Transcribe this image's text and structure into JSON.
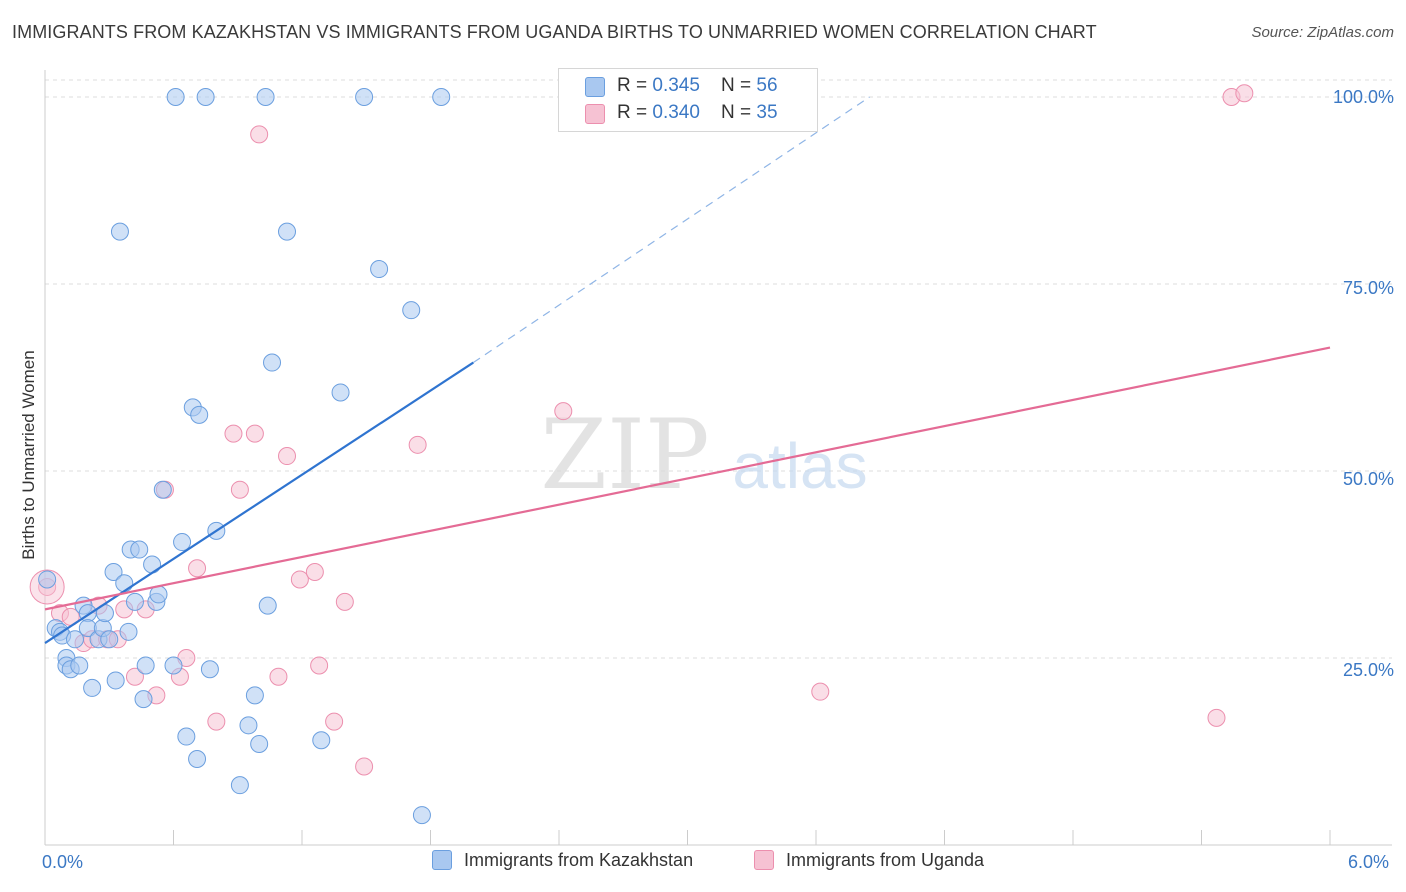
{
  "title": "IMMIGRANTS FROM KAZAKHSTAN VS IMMIGRANTS FROM UGANDA BIRTHS TO UNMARRIED WOMEN CORRELATION CHART",
  "source": "Source: ZipAtlas.com",
  "watermark": {
    "zip": "ZIP",
    "atlas": "atlas"
  },
  "colors": {
    "kazakhstan_fill": "#a9c8f0",
    "kazakhstan_stroke": "#6b9fdf",
    "kazakhstan_line": "#2f74d0",
    "uganda_fill": "#f6c2d3",
    "uganda_stroke": "#ec8fae",
    "uganda_line": "#e46b95",
    "axis_text": "#3b78c4",
    "grid": "#dddddd"
  },
  "legend": {
    "rows": [
      {
        "r_label": "R = ",
        "r_value": "0.345",
        "n_label": "N = ",
        "n_value": "56"
      },
      {
        "r_label": "R = ",
        "r_value": "0.340",
        "n_label": "N = ",
        "n_value": "35"
      }
    ]
  },
  "chart_data": {
    "type": "scatter",
    "title": "IMMIGRANTS FROM KAZAKHSTAN VS IMMIGRANTS FROM UGANDA BIRTHS TO UNMARRIED WOMEN CORRELATION CHART",
    "xlabel": "",
    "ylabel": "Births to Unmarried Women",
    "xlim": [
      0,
      6
    ],
    "ylim": [
      0,
      105
    ],
    "x_tick_labels": [
      "0.0%",
      "6.0%"
    ],
    "y_ticks": [
      25,
      50,
      75,
      100
    ],
    "y_tick_labels": [
      "25.0%",
      "50.0%",
      "75.0%",
      "100.0%"
    ],
    "grid": true,
    "legend_position": "bottom",
    "series": [
      {
        "name": "Immigrants from Kazakhstan",
        "points": [
          [
            0.01,
            35.5
          ],
          [
            0.05,
            29
          ],
          [
            0.07,
            28.5
          ],
          [
            0.08,
            28
          ],
          [
            0.1,
            25
          ],
          [
            0.1,
            24
          ],
          [
            0.12,
            23.5
          ],
          [
            0.14,
            27.5
          ],
          [
            0.16,
            24
          ],
          [
            0.18,
            32
          ],
          [
            0.2,
            31
          ],
          [
            0.2,
            29
          ],
          [
            0.22,
            21
          ],
          [
            0.25,
            27.5
          ],
          [
            0.27,
            29
          ],
          [
            0.28,
            31
          ],
          [
            0.3,
            27.5
          ],
          [
            0.32,
            36.5
          ],
          [
            0.33,
            22
          ],
          [
            0.35,
            82
          ],
          [
            0.37,
            35
          ],
          [
            0.39,
            28.5
          ],
          [
            0.4,
            39.5
          ],
          [
            0.42,
            32.5
          ],
          [
            0.44,
            39.5
          ],
          [
            0.46,
            19.5
          ],
          [
            0.47,
            24
          ],
          [
            0.5,
            37.5
          ],
          [
            0.52,
            32.5
          ],
          [
            0.53,
            33.5
          ],
          [
            0.55,
            47.5
          ],
          [
            0.6,
            24
          ],
          [
            0.61,
            100
          ],
          [
            0.64,
            40.5
          ],
          [
            0.66,
            14.5
          ],
          [
            0.69,
            58.5
          ],
          [
            0.71,
            11.5
          ],
          [
            0.72,
            57.5
          ],
          [
            0.75,
            100
          ],
          [
            0.77,
            23.5
          ],
          [
            0.8,
            42
          ],
          [
            0.91,
            8
          ],
          [
            0.95,
            16
          ],
          [
            0.98,
            20
          ],
          [
            1.0,
            13.5
          ],
          [
            1.03,
            100
          ],
          [
            1.04,
            32
          ],
          [
            1.06,
            64.5
          ],
          [
            1.13,
            82
          ],
          [
            1.29,
            14
          ],
          [
            1.38,
            60.5
          ],
          [
            1.49,
            100
          ],
          [
            1.56,
            77
          ],
          [
            1.71,
            71.5
          ],
          [
            1.76,
            4
          ],
          [
            1.85,
            100
          ]
        ]
      },
      {
        "name": "Immigrants from Uganda",
        "points": [
          [
            0.01,
            34.5
          ],
          [
            0.07,
            31
          ],
          [
            0.12,
            30.5
          ],
          [
            0.18,
            27
          ],
          [
            0.22,
            27.5
          ],
          [
            0.25,
            32
          ],
          [
            0.29,
            27.5
          ],
          [
            0.34,
            27.5
          ],
          [
            0.37,
            31.5
          ],
          [
            0.42,
            22.5
          ],
          [
            0.47,
            31.5
          ],
          [
            0.52,
            20
          ],
          [
            0.56,
            47.5
          ],
          [
            0.63,
            22.5
          ],
          [
            0.66,
            25
          ],
          [
            0.71,
            37
          ],
          [
            0.8,
            16.5
          ],
          [
            0.88,
            55
          ],
          [
            0.91,
            47.5
          ],
          [
            0.98,
            55
          ],
          [
            1.0,
            95
          ],
          [
            1.09,
            22.5
          ],
          [
            1.13,
            52
          ],
          [
            1.19,
            35.5
          ],
          [
            1.26,
            36.5
          ],
          [
            1.28,
            24
          ],
          [
            1.35,
            16.5
          ],
          [
            1.4,
            32.5
          ],
          [
            1.49,
            10.5
          ],
          [
            1.74,
            53.5
          ],
          [
            2.42,
            58
          ],
          [
            3.62,
            20.5
          ],
          [
            5.47,
            17
          ],
          [
            5.54,
            100
          ],
          [
            5.6,
            100.5
          ]
        ]
      }
    ],
    "trend_lines": [
      {
        "name": "Immigrants from Kazakhstan",
        "x": [
          0,
          2.0
        ],
        "y": [
          27,
          64.5
        ],
        "dashed_extension_to": [
          3.85,
          100
        ]
      },
      {
        "name": "Immigrants from Uganda",
        "x": [
          0,
          6.0
        ],
        "y": [
          31.5,
          66.5
        ]
      }
    ]
  },
  "bottom_legend": [
    {
      "label": "Immigrants from Kazakhstan"
    },
    {
      "label": "Immigrants from Uganda"
    }
  ]
}
